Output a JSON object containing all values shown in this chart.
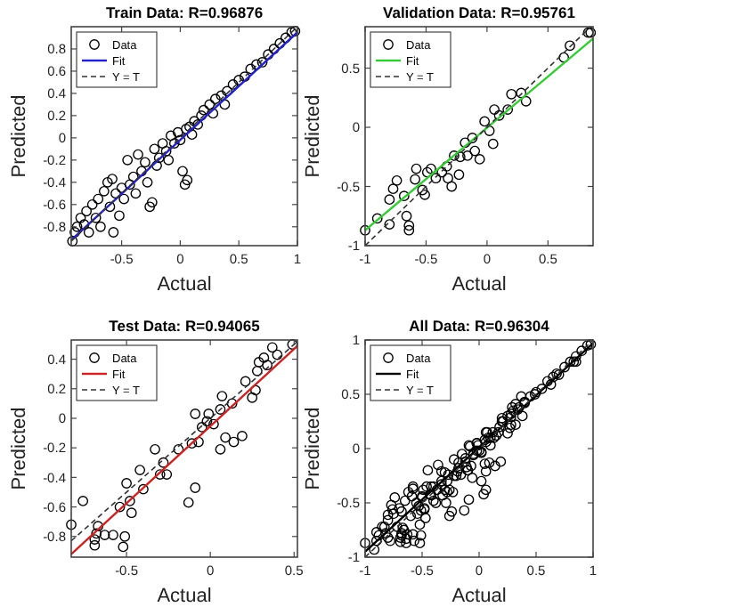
{
  "chart_data": [
    {
      "type": "scatter",
      "title": "Train Data: R=0.96876",
      "xlabel": "Actual",
      "ylabel": "Predicted",
      "xlim": [
        -0.93,
        1
      ],
      "ylim": [
        -0.97,
        1
      ],
      "xticks": [
        -0.5,
        0,
        0.5,
        1
      ],
      "yticks": [
        -0.8,
        -0.6,
        -0.4,
        -0.2,
        0,
        0.2,
        0.4,
        0.6,
        0.8
      ],
      "legend": "top left",
      "series": [
        {
          "name": "Data",
          "type": "scatter",
          "marker": "circle",
          "color": "#000000",
          "x": [
            -0.92,
            -0.9,
            -0.88,
            -0.85,
            -0.82,
            -0.8,
            -0.78,
            -0.75,
            -0.72,
            -0.7,
            -0.68,
            -0.65,
            -0.62,
            -0.6,
            -0.58,
            -0.57,
            -0.55,
            -0.52,
            -0.5,
            -0.48,
            -0.45,
            -0.43,
            -0.4,
            -0.38,
            -0.36,
            -0.33,
            -0.3,
            -0.28,
            -0.26,
            -0.24,
            -0.22,
            -0.2,
            -0.18,
            -0.15,
            -0.12,
            -0.1,
            -0.08,
            -0.05,
            -0.02,
            0,
            0.02,
            0.04,
            0.06,
            0.05,
            0.08,
            0.1,
            0.12,
            0.15,
            0.18,
            0.2,
            0.25,
            0.28,
            0.3,
            0.35,
            0.38,
            0.4,
            0.45,
            0.5,
            0.55,
            0.6,
            0.65,
            0.7,
            0.75,
            0.8,
            0.85,
            0.9,
            0.95,
            0.98
          ],
          "values": [
            -0.93,
            -0.85,
            -0.8,
            -0.72,
            -0.78,
            -0.66,
            -0.85,
            -0.6,
            -0.72,
            -0.55,
            -0.8,
            -0.48,
            -0.4,
            -0.62,
            -0.37,
            -0.85,
            -0.5,
            -0.7,
            -0.45,
            -0.55,
            -0.2,
            -0.42,
            -0.35,
            -0.5,
            -0.15,
            -0.3,
            -0.22,
            -0.4,
            -0.62,
            -0.58,
            -0.1,
            -0.25,
            -0.18,
            -0.05,
            -0.12,
            -0.2,
            0.02,
            -0.05,
            0.05,
            -0.02,
            -0.3,
            -0.42,
            -0.38,
            0.08,
            0.1,
            0.03,
            0.15,
            0.12,
            0.2,
            0.25,
            0.3,
            0.22,
            0.35,
            0.38,
            0.3,
            0.42,
            0.48,
            0.52,
            0.55,
            0.62,
            0.66,
            0.68,
            0.75,
            0.8,
            0.85,
            0.9,
            0.95,
            0.96
          ]
        },
        {
          "name": "Fit",
          "type": "line",
          "marker": "none",
          "color": "#2222cc",
          "line_style": "solid",
          "x": [
            -0.93,
            1
          ],
          "values": [
            -0.92,
            0.95
          ]
        },
        {
          "name": "Y = T",
          "type": "line",
          "color": "#333333",
          "line_style": "dashed",
          "x": [
            -0.93,
            1
          ],
          "values": [
            -0.93,
            1
          ]
        }
      ]
    },
    {
      "type": "scatter",
      "title": "Validation Data: R=0.95761",
      "xlabel": "Actual",
      "ylabel": "Predicted",
      "xlim": [
        -1,
        0.87
      ],
      "ylim": [
        -1,
        0.85
      ],
      "xticks": [
        -1,
        -0.5,
        0,
        0.5
      ],
      "yticks": [
        -1,
        -0.5,
        0,
        0.5
      ],
      "legend": "top left",
      "series": [
        {
          "name": "Data",
          "type": "scatter",
          "marker": "circle",
          "color": "#000000",
          "x": [
            -1,
            -0.9,
            -0.8,
            -0.8,
            -0.77,
            -0.74,
            -0.66,
            -0.64,
            -0.64,
            -0.68,
            -0.59,
            -0.58,
            -0.53,
            -0.51,
            -0.49,
            -0.46,
            -0.42,
            -0.37,
            -0.33,
            -0.32,
            -0.29,
            -0.27,
            -0.23,
            -0.22,
            -0.18,
            -0.16,
            -0.12,
            -0.1,
            -0.06,
            -0.02,
            0.02,
            0.05,
            0.06,
            0.1,
            0.17,
            0.2,
            0.28,
            0.32,
            0.63,
            0.68,
            0.83,
            0.85
          ],
          "values": [
            -0.87,
            -0.77,
            -0.82,
            -0.61,
            -0.52,
            -0.45,
            -0.75,
            -0.83,
            -0.87,
            -0.58,
            -0.44,
            -0.35,
            -0.53,
            -0.57,
            -0.38,
            -0.35,
            -0.43,
            -0.38,
            -0.33,
            -0.43,
            -0.5,
            -0.24,
            -0.4,
            -0.25,
            -0.13,
            -0.24,
            -0.09,
            -0.2,
            -0.27,
            0.05,
            -0.03,
            -0.14,
            0.15,
            0.1,
            0.15,
            0.28,
            0.29,
            0.22,
            0.59,
            0.69,
            0.8,
            0.8
          ]
        },
        {
          "name": "Fit",
          "type": "line",
          "marker": "none",
          "color": "#33cc33",
          "line_style": "solid",
          "x": [
            -1,
            0.87
          ],
          "values": [
            -0.87,
            0.75
          ]
        },
        {
          "name": "Y = T",
          "type": "line",
          "color": "#333333",
          "line_style": "dashed",
          "x": [
            -1,
            0.85
          ],
          "values": [
            -1,
            0.85
          ]
        }
      ]
    },
    {
      "type": "scatter",
      "title": "Test Data: R=0.94065",
      "xlabel": "Actual",
      "ylabel": "Predicted",
      "xlim": [
        -0.83,
        0.52
      ],
      "ylim": [
        -0.94,
        0.53
      ],
      "xticks": [
        -0.5,
        0,
        0.5
      ],
      "yticks": [
        -0.8,
        -0.6,
        -0.4,
        -0.2,
        0,
        0.2,
        0.4
      ],
      "legend": "top left",
      "series": [
        {
          "name": "Data",
          "type": "scatter",
          "marker": "circle",
          "color": "#000000",
          "x": [
            -0.83,
            -0.76,
            -0.69,
            -0.69,
            -0.68,
            -0.67,
            -0.63,
            -0.58,
            -0.54,
            -0.51,
            -0.52,
            -0.5,
            -0.48,
            -0.47,
            -0.42,
            -0.4,
            -0.33,
            -0.3,
            -0.28,
            -0.26,
            -0.19,
            -0.13,
            -0.11,
            -0.09,
            -0.09,
            -0.07,
            -0.05,
            -0.02,
            -0.01,
            0.02,
            0.06,
            0.07,
            0.06,
            0.09,
            0.14,
            0.19,
            0.13,
            0.21,
            0.25,
            0.27,
            0.28,
            0.29,
            0.32,
            0.34,
            0.37,
            0.4,
            0.49
          ],
          "values": [
            -0.72,
            -0.56,
            -0.86,
            -0.82,
            -0.78,
            -0.73,
            -0.79,
            -0.79,
            -0.6,
            -0.8,
            -0.87,
            -0.44,
            -0.56,
            -0.64,
            -0.35,
            -0.48,
            -0.21,
            -0.38,
            -0.3,
            -0.38,
            -0.21,
            -0.57,
            -0.17,
            -0.47,
            0.03,
            -0.16,
            -0.06,
            -0.02,
            0.03,
            -0.04,
            0.06,
            0.15,
            -0.21,
            -0.13,
            -0.16,
            -0.12,
            0.1,
            0.25,
            0.14,
            0.19,
            0.32,
            0.38,
            0.41,
            0.36,
            0.48,
            0.43,
            0.5
          ]
        },
        {
          "name": "Fit",
          "type": "line",
          "marker": "none",
          "color": "#cc2222",
          "line_style": "solid",
          "x": [
            -0.83,
            0.52
          ],
          "values": [
            -0.92,
            0.49
          ]
        },
        {
          "name": "Y = T",
          "type": "line",
          "color": "#333333",
          "line_style": "dashed",
          "x": [
            -0.83,
            0.52
          ],
          "values": [
            -0.83,
            0.52
          ]
        }
      ]
    },
    {
      "type": "scatter",
      "title": "All Data: R=0.96304",
      "xlabel": "Actual",
      "ylabel": "Predicted",
      "xlim": [
        -1,
        1
      ],
      "ylim": [
        -1,
        1
      ],
      "xticks": [
        -1,
        -0.5,
        0,
        0.5,
        1
      ],
      "yticks": [
        -1,
        -0.5,
        0,
        0.5,
        1
      ],
      "legend": "top left",
      "series": [
        {
          "name": "Data",
          "type": "scatter",
          "marker": "circle",
          "color": "#000000",
          "x": [
            -0.92,
            -0.9,
            -0.88,
            -0.85,
            -0.82,
            -0.8,
            -0.78,
            -0.75,
            -0.72,
            -0.7,
            -0.68,
            -0.65,
            -0.62,
            -0.6,
            -0.58,
            -0.57,
            -0.55,
            -0.52,
            -0.5,
            -0.48,
            -0.45,
            -0.43,
            -0.4,
            -0.38,
            -0.36,
            -0.33,
            -0.3,
            -0.28,
            -0.26,
            -0.24,
            -0.22,
            -0.2,
            -0.18,
            -0.15,
            -0.12,
            -0.1,
            -0.08,
            -0.05,
            -0.02,
            0,
            0.02,
            0.04,
            0.06,
            0.05,
            0.08,
            0.1,
            0.12,
            0.15,
            0.18,
            0.2,
            0.25,
            0.28,
            0.3,
            0.35,
            0.38,
            0.4,
            0.45,
            0.5,
            0.55,
            0.6,
            0.65,
            0.7,
            0.75,
            0.8,
            0.85,
            0.9,
            0.95,
            0.98,
            -1,
            -0.9,
            -0.8,
            -0.8,
            -0.77,
            -0.74,
            -0.66,
            -0.64,
            -0.64,
            -0.68,
            -0.59,
            -0.58,
            -0.53,
            -0.51,
            -0.49,
            -0.46,
            -0.42,
            -0.37,
            -0.33,
            -0.32,
            -0.29,
            -0.27,
            -0.23,
            -0.22,
            -0.18,
            -0.16,
            -0.12,
            -0.1,
            -0.06,
            -0.02,
            0.02,
            0.05,
            0.06,
            0.1,
            0.17,
            0.2,
            0.28,
            0.32,
            0.63,
            0.68,
            0.83,
            0.85,
            -0.83,
            -0.76,
            -0.69,
            -0.69,
            -0.68,
            -0.67,
            -0.63,
            -0.58,
            -0.54,
            -0.51,
            -0.52,
            -0.5,
            -0.48,
            -0.47,
            -0.42,
            -0.4,
            -0.33,
            -0.3,
            -0.28,
            -0.26,
            -0.19,
            -0.13,
            -0.11,
            -0.09,
            -0.09,
            -0.07,
            -0.05,
            -0.02,
            -0.01,
            0.02,
            0.06,
            0.07,
            0.06,
            0.09,
            0.14,
            0.19,
            0.13,
            0.21,
            0.25,
            0.27,
            0.28,
            0.29,
            0.32,
            0.34,
            0.37,
            0.4,
            0.49
          ],
          "values": [
            -0.93,
            -0.85,
            -0.8,
            -0.72,
            -0.78,
            -0.66,
            -0.85,
            -0.6,
            -0.72,
            -0.55,
            -0.8,
            -0.48,
            -0.4,
            -0.62,
            -0.37,
            -0.85,
            -0.5,
            -0.7,
            -0.45,
            -0.55,
            -0.2,
            -0.42,
            -0.35,
            -0.5,
            -0.15,
            -0.3,
            -0.22,
            -0.4,
            -0.62,
            -0.58,
            -0.1,
            -0.25,
            -0.18,
            -0.05,
            -0.12,
            -0.2,
            0.02,
            -0.05,
            0.05,
            -0.02,
            -0.3,
            -0.42,
            -0.38,
            0.08,
            0.1,
            0.03,
            0.15,
            0.12,
            0.2,
            0.25,
            0.3,
            0.22,
            0.35,
            0.38,
            0.3,
            0.42,
            0.48,
            0.52,
            0.55,
            0.62,
            0.66,
            0.68,
            0.75,
            0.8,
            0.85,
            0.9,
            0.95,
            0.96,
            -0.87,
            -0.77,
            -0.82,
            -0.61,
            -0.52,
            -0.45,
            -0.75,
            -0.83,
            -0.87,
            -0.58,
            -0.44,
            -0.35,
            -0.53,
            -0.57,
            -0.38,
            -0.35,
            -0.43,
            -0.38,
            -0.33,
            -0.43,
            -0.5,
            -0.24,
            -0.4,
            -0.25,
            -0.13,
            -0.24,
            -0.09,
            -0.2,
            -0.27,
            0.05,
            -0.03,
            -0.14,
            0.15,
            0.1,
            0.15,
            0.28,
            0.29,
            0.22,
            0.59,
            0.69,
            0.8,
            0.8,
            -0.72,
            -0.56,
            -0.86,
            -0.82,
            -0.78,
            -0.73,
            -0.79,
            -0.79,
            -0.6,
            -0.8,
            -0.87,
            -0.44,
            -0.56,
            -0.64,
            -0.35,
            -0.48,
            -0.21,
            -0.38,
            -0.3,
            -0.38,
            -0.21,
            -0.57,
            -0.17,
            -0.47,
            0.03,
            -0.16,
            -0.06,
            -0.02,
            0.03,
            -0.04,
            0.06,
            0.15,
            -0.21,
            -0.13,
            -0.16,
            -0.12,
            0.1,
            0.25,
            0.14,
            0.19,
            0.32,
            0.38,
            0.41,
            0.36,
            0.48,
            0.43,
            0.5
          ]
        },
        {
          "name": "Fit",
          "type": "line",
          "marker": "none",
          "color": "#000000",
          "line_style": "solid",
          "x": [
            -1,
            1
          ],
          "values": [
            -0.95,
            0.97
          ]
        },
        {
          "name": "Y = T",
          "type": "line",
          "color": "#333333",
          "line_style": "dashed",
          "x": [
            -1,
            1
          ],
          "values": [
            -1,
            1
          ]
        }
      ]
    }
  ]
}
